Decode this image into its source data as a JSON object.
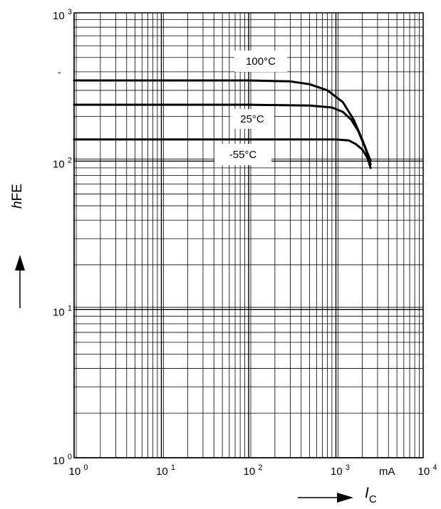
{
  "chart_data": {
    "type": "line",
    "xscale": "log",
    "yscale": "log",
    "xlim": [
      1,
      10000
    ],
    "ylim": [
      1,
      1000
    ],
    "grid": true,
    "x_ticks": [
      {
        "base": "10",
        "exp": "0"
      },
      {
        "base": "10",
        "exp": "1"
      },
      {
        "base": "10",
        "exp": "2"
      },
      {
        "base": "10",
        "exp": "3"
      },
      {
        "base": "10",
        "exp": "4"
      }
    ],
    "y_ticks": [
      {
        "base": "10",
        "exp": "0"
      },
      {
        "base": "10",
        "exp": "1"
      },
      {
        "base": "10",
        "exp": "2"
      },
      {
        "base": "10",
        "exp": "3"
      }
    ],
    "x_unit": "mA",
    "xlabel": {
      "main": "I",
      "sub": "C"
    },
    "ylabel": {
      "italic": "h",
      "rest": "FE"
    },
    "stray_mark": "-",
    "series": [
      {
        "name": "100°C",
        "x": [
          1,
          100,
          300,
          500,
          800,
          1200,
          1600,
          2000,
          2500
        ],
        "y": [
          350,
          350,
          345,
          330,
          300,
          250,
          190,
          140,
          100
        ]
      },
      {
        "name": "25°C",
        "x": [
          1,
          100,
          500,
          900,
          1200,
          1500,
          1800,
          2200,
          2500
        ],
        "y": [
          240,
          240,
          237,
          230,
          215,
          190,
          160,
          120,
          95
        ]
      },
      {
        "name": "-55°C",
        "x": [
          1,
          100,
          1000,
          1400,
          1700,
          2000,
          2300,
          2500
        ],
        "y": [
          140,
          140,
          140,
          138,
          130,
          120,
          105,
          90
        ]
      }
    ]
  }
}
